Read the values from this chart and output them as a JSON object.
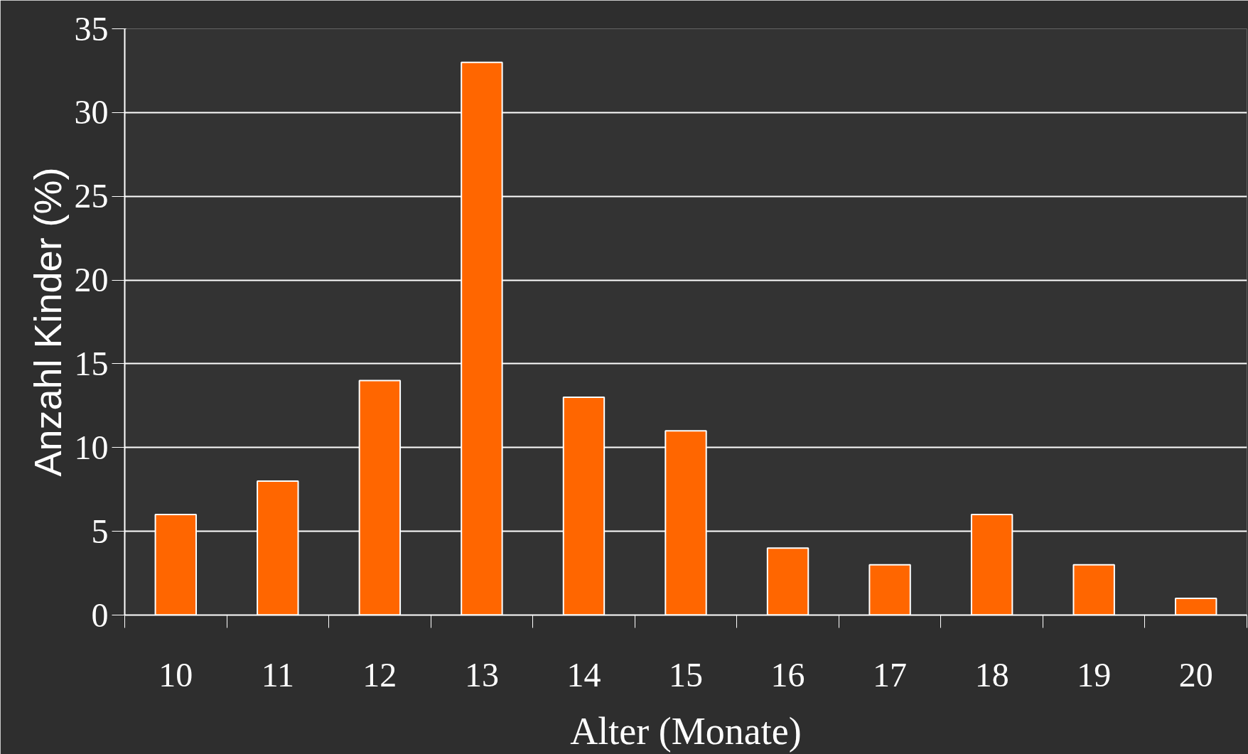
{
  "chart_data": {
    "type": "bar",
    "xlabel": "Alter (Monate)",
    "ylabel": "Anzahl Kinder (%)",
    "categories": [
      "10",
      "11",
      "12",
      "13",
      "14",
      "15",
      "16",
      "17",
      "18",
      "19",
      "20"
    ],
    "values": [
      6,
      8,
      14,
      33,
      13,
      11,
      4,
      3,
      6,
      3,
      1
    ],
    "color": "#ff6600",
    "ylim": [
      0,
      35
    ],
    "yticks": [
      0,
      5,
      10,
      15,
      20,
      25,
      30,
      35
    ],
    "grid": "y"
  }
}
